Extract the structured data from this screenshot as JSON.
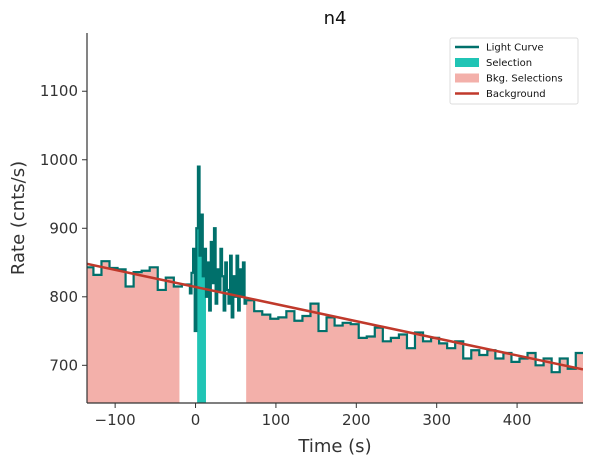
{
  "chart_data": {
    "type": "line",
    "title": "n4",
    "xlabel": "Time (s)",
    "ylabel": "Rate (cnts/s)",
    "xlim": [
      -135,
      482
    ],
    "ylim": [
      645,
      1185
    ],
    "xticks": [
      -100,
      0,
      100,
      200,
      300,
      400
    ],
    "yticks": [
      700,
      800,
      900,
      1000,
      1100
    ],
    "legend_position": "top-right",
    "legend": [
      {
        "label": "Light Curve",
        "kind": "line",
        "color": "#00706b"
      },
      {
        "label": "Selection",
        "kind": "patch",
        "color": "#20c4b5"
      },
      {
        "label": "Bkg. Selections",
        "kind": "patch",
        "color": "#f3b0aa"
      },
      {
        "label": "Background",
        "kind": "line",
        "color": "#c0392b"
      }
    ],
    "colors": {
      "light_curve": "#00706b",
      "selection": "#20c4b5",
      "bkg_selection": "#f3b0aa",
      "background": "#c0392b"
    },
    "bkg_selections": [
      [
        -135,
        -20
      ],
      [
        63,
        482
      ]
    ],
    "selection": [
      2,
      13
    ],
    "background_fit": {
      "x": [
        -135,
        482
      ],
      "y": [
        848,
        694
      ]
    },
    "series": [
      {
        "name": "Light Curve",
        "style": "steps-post",
        "x": [
          -135,
          -127,
          -117,
          -107,
          -97,
          -87,
          -77,
          -67,
          -57,
          -47,
          -37,
          -27,
          -17,
          -7,
          -5,
          -3,
          -1,
          1,
          3,
          5,
          7,
          9,
          11,
          13,
          15,
          17,
          19,
          21,
          23,
          25,
          27,
          29,
          31,
          33,
          35,
          37,
          39,
          41,
          43,
          45,
          47,
          49,
          51,
          53,
          55,
          57,
          59,
          61,
          63,
          73,
          83,
          93,
          103,
          113,
          123,
          133,
          143,
          153,
          163,
          173,
          183,
          193,
          203,
          213,
          223,
          233,
          243,
          253,
          263,
          273,
          283,
          293,
          303,
          313,
          323,
          333,
          343,
          353,
          363,
          373,
          383,
          393,
          403,
          413,
          423,
          433,
          443,
          453,
          463,
          473,
          482
        ],
        "y": [
          843,
          832,
          852,
          842,
          840,
          815,
          836,
          838,
          843,
          810,
          828,
          815,
          818,
          805,
          835,
          870,
          750,
          900,
          990,
          860,
          920,
          830,
          870,
          800,
          850,
          780,
          880,
          820,
          900,
          790,
          840,
          810,
          870,
          830,
          780,
          850,
          810,
          790,
          860,
          770,
          830,
          800,
          860,
          780,
          840,
          800,
          850,
          790,
          795,
          779,
          774,
          768,
          770,
          779,
          765,
          772,
          790,
          750,
          770,
          758,
          762,
          760,
          740,
          742,
          755,
          735,
          740,
          745,
          725,
          748,
          735,
          740,
          732,
          725,
          735,
          710,
          722,
          715,
          722,
          710,
          718,
          705,
          710,
          718,
          700,
          710,
          690,
          710,
          695,
          718,
          718
        ]
      }
    ]
  }
}
